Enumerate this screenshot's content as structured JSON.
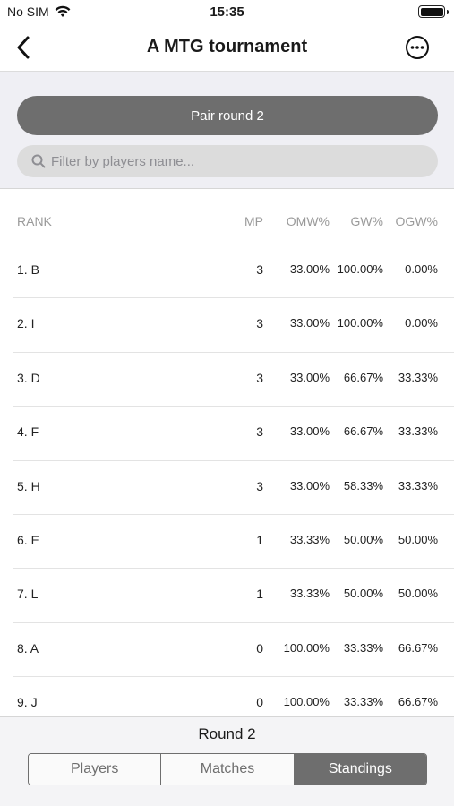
{
  "status": {
    "carrier": "No SIM",
    "time": "15:35"
  },
  "nav": {
    "title": "A MTG tournament"
  },
  "actions": {
    "pair_label": "Pair round 2"
  },
  "search": {
    "placeholder": "Filter by players name..."
  },
  "table": {
    "headers": {
      "rank": "RANK",
      "mp": "MP",
      "omw": "OMW%",
      "gw": "GW%",
      "ogw": "OGW%"
    },
    "rows": [
      {
        "rank": "1. B",
        "mp": "3",
        "omw": "33.00%",
        "gw": "100.00%",
        "ogw": "0.00%"
      },
      {
        "rank": "2. I",
        "mp": "3",
        "omw": "33.00%",
        "gw": "100.00%",
        "ogw": "0.00%"
      },
      {
        "rank": "3. D",
        "mp": "3",
        "omw": "33.00%",
        "gw": "66.67%",
        "ogw": "33.33%"
      },
      {
        "rank": "4. F",
        "mp": "3",
        "omw": "33.00%",
        "gw": "66.67%",
        "ogw": "33.33%"
      },
      {
        "rank": "5. H",
        "mp": "3",
        "omw": "33.00%",
        "gw": "58.33%",
        "ogw": "33.33%"
      },
      {
        "rank": "6. E",
        "mp": "1",
        "omw": "33.33%",
        "gw": "50.00%",
        "ogw": "50.00%"
      },
      {
        "rank": "7. L",
        "mp": "1",
        "omw": "33.33%",
        "gw": "50.00%",
        "ogw": "50.00%"
      },
      {
        "rank": "8. A",
        "mp": "0",
        "omw": "100.00%",
        "gw": "33.33%",
        "ogw": "66.67%"
      },
      {
        "rank": "9. J",
        "mp": "0",
        "omw": "100.00%",
        "gw": "33.33%",
        "ogw": "66.67%"
      }
    ]
  },
  "footer": {
    "round_label": "Round 2",
    "tabs": [
      {
        "label": "Players",
        "active": false
      },
      {
        "label": "Matches",
        "active": false
      },
      {
        "label": "Standings",
        "active": true
      }
    ]
  },
  "icons": {
    "wifi": "wifi-icon",
    "battery": "battery-icon",
    "back": "chevron-left-icon",
    "more": "more-icon",
    "search": "search-icon"
  },
  "colors": {
    "accent_gray": "#6e6e6e",
    "panel_bg": "#efeff4"
  }
}
